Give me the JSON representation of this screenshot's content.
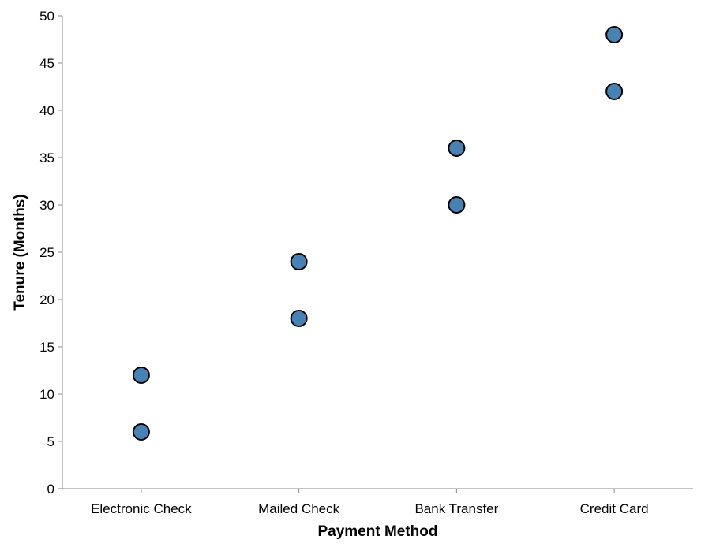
{
  "chart_data": {
    "type": "scatter",
    "title": "",
    "xlabel": "Payment Method",
    "ylabel": "Tenure (Months)",
    "categories": [
      "Electronic Check",
      "Mailed Check",
      "Bank Transfer",
      "Credit Card"
    ],
    "points": [
      {
        "x": "Electronic Check",
        "y": 6
      },
      {
        "x": "Electronic Check",
        "y": 12
      },
      {
        "x": "Mailed Check",
        "y": 18
      },
      {
        "x": "Mailed Check",
        "y": 24
      },
      {
        "x": "Bank Transfer",
        "y": 30
      },
      {
        "x": "Bank Transfer",
        "y": 36
      },
      {
        "x": "Credit Card",
        "y": 42
      },
      {
        "x": "Credit Card",
        "y": 48
      }
    ],
    "ylim": [
      0,
      50
    ],
    "yticks": [
      0,
      5,
      10,
      15,
      20,
      25,
      30,
      35,
      40,
      45,
      50
    ],
    "grid": false,
    "colors": {
      "point_fill": "#4682b4",
      "point_stroke": "#000000",
      "axis": "#888888"
    }
  }
}
